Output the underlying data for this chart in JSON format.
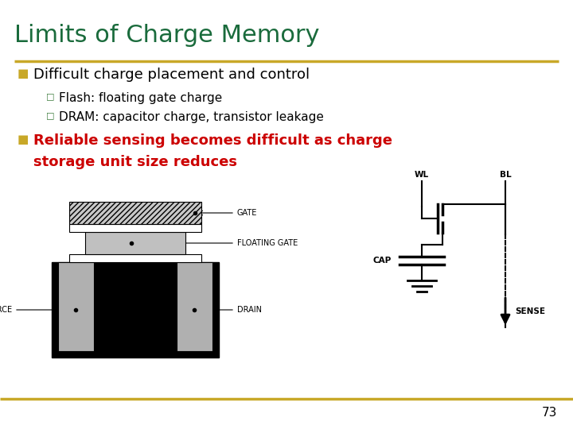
{
  "title": "Limits of Charge Memory",
  "title_color": "#1a6b3c",
  "title_fontsize": 22,
  "separator_color": "#c8a828",
  "background_color": "#ffffff",
  "bullet1_text": "Difficult charge placement and control",
  "bullet1_color": "#000000",
  "bullet1_marker_color": "#c8a828",
  "sub_bullet1": "Flash: floating gate charge",
  "sub_bullet2": "DRAM: capacitor charge, transistor leakage",
  "sub_bullet_color": "#000000",
  "sub_marker_color": "#3a7a3a",
  "bullet2_line1": "Reliable sensing becomes difficult as charge",
  "bullet2_line2": "storage unit size reduces",
  "bullet2_color": "#cc0000",
  "bullet2_marker_color": "#c8a828",
  "page_number": "73",
  "footer_line_color": "#c8a828"
}
